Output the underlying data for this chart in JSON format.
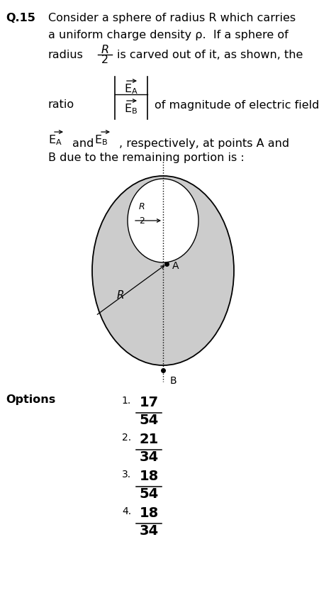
{
  "bg_color": "#ffffff",
  "question_number": "Q.15",
  "title_line1": "Consider a sphere of radius R which carries",
  "title_line2": "a uniform charge density ρ.  If a sphere of",
  "radius_prefix": "radius",
  "radius_frac_num": "R",
  "radius_frac_den": "2",
  "radius_suffix": "is carved out of it, as shown, the",
  "ratio_word": "ratio",
  "ratio_suffix": "of magnitude of electric field",
  "body_line1a": "E",
  "body_line1b": "A",
  "body_and": "and",
  "body_line1c": "E",
  "body_line1d": "B",
  "body_line1e": ", respectively, at points A and",
  "body_line2": "B due to the remaining portion is :",
  "options_label": "Options",
  "options": [
    {
      "num": "17",
      "den": "54"
    },
    {
      "num": "21",
      "den": "34"
    },
    {
      "num": "18",
      "den": "54"
    },
    {
      "num": "18",
      "den": "34"
    }
  ],
  "diagram_fill": "#cccccc",
  "diagram_hole": "#ffffff",
  "diagram_stroke": "#000000"
}
